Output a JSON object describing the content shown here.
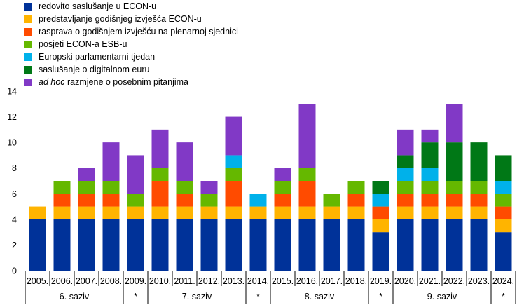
{
  "chart_data": {
    "type": "bar",
    "stacked": true,
    "title": "",
    "xlabel": "",
    "ylabel": "",
    "ylim": [
      0,
      14
    ],
    "yticks": [
      0,
      2,
      4,
      6,
      8,
      10,
      12,
      14
    ],
    "grid": false,
    "legend_position": "top-left",
    "categories": [
      "2005.",
      "2006.",
      "2007.",
      "2008.",
      "2009.",
      "2010.",
      "2011.",
      "2012.",
      "2013.",
      "2014.",
      "2015.",
      "2016.",
      "2017.",
      "2018.",
      "2019.",
      "2020.",
      "2021.",
      "2022.",
      "2023.",
      "2024."
    ],
    "groups": [
      {
        "label": "6. saziv",
        "start": 0,
        "end": 3
      },
      {
        "label": "*",
        "start": 4,
        "end": 4
      },
      {
        "label": "7. saziv",
        "start": 5,
        "end": 8
      },
      {
        "label": "*",
        "start": 9,
        "end": 9
      },
      {
        "label": "8. saziv",
        "start": 10,
        "end": 13
      },
      {
        "label": "*",
        "start": 14,
        "end": 14
      },
      {
        "label": "9. saziv",
        "start": 15,
        "end": 18
      },
      {
        "label": "*",
        "start": 19,
        "end": 19
      }
    ],
    "series": [
      {
        "name": "redovito saslušanje u ECON-u",
        "color": "#003299",
        "values": [
          4,
          4,
          4,
          4,
          4,
          4,
          4,
          4,
          4,
          4,
          4,
          4,
          4,
          4,
          3,
          4,
          4,
          4,
          4,
          3
        ]
      },
      {
        "name": "predstavljanje godišnjeg izvješća ECON-u",
        "color": "#ffb400",
        "values": [
          1,
          1,
          1,
          1,
          1,
          1,
          1,
          1,
          1,
          1,
          1,
          1,
          1,
          1,
          1,
          1,
          1,
          1,
          1,
          1
        ]
      },
      {
        "name": "rasprava o godišnjem izvješću na plenarnoj sjednici",
        "color": "#ff4b00",
        "values": [
          0,
          1,
          1,
          1,
          0,
          2,
          1,
          0,
          2,
          0,
          1,
          2,
          0,
          1,
          1,
          1,
          1,
          1,
          1,
          1
        ]
      },
      {
        "name": "posjeti ECON-a ESB-u",
        "color": "#65b800",
        "values": [
          0,
          1,
          1,
          1,
          1,
          1,
          1,
          1,
          1,
          0,
          1,
          1,
          1,
          1,
          0,
          1,
          1,
          1,
          1,
          1
        ]
      },
      {
        "name": "Europski parlamentarni tjedan",
        "color": "#00b1ea",
        "values": [
          0,
          0,
          0,
          0,
          0,
          0,
          0,
          0,
          1,
          1,
          0,
          0,
          0,
          0,
          1,
          1,
          1,
          0,
          0,
          1
        ]
      },
      {
        "name": "saslušanje o digitalnom euru",
        "color": "#007816",
        "values": [
          0,
          0,
          0,
          0,
          0,
          0,
          0,
          0,
          0,
          0,
          0,
          0,
          0,
          0,
          1,
          1,
          2,
          3,
          3,
          2
        ]
      },
      {
        "name_italic": "ad hoc",
        "name": " razmjene o posebnim pitanjima",
        "color": "#8139c6",
        "values": [
          0,
          0,
          1,
          3,
          3,
          3,
          3,
          1,
          3,
          0,
          1,
          5,
          0,
          0,
          0,
          2,
          1,
          3,
          0,
          0
        ]
      }
    ]
  }
}
